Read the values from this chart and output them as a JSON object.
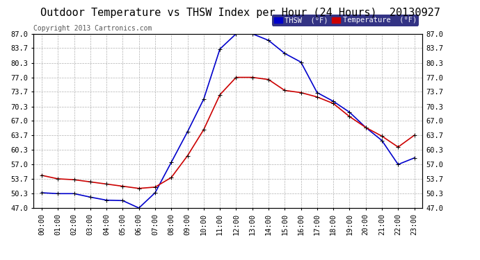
{
  "title": "Outdoor Temperature vs THSW Index per Hour (24 Hours)  20130927",
  "copyright": "Copyright 2013 Cartronics.com",
  "background_color": "#ffffff",
  "plot_bg_color": "#ffffff",
  "grid_color": "#b0b0b0",
  "hours": [
    "00:00",
    "01:00",
    "02:00",
    "03:00",
    "04:00",
    "05:00",
    "06:00",
    "07:00",
    "08:00",
    "09:00",
    "10:00",
    "11:00",
    "12:00",
    "13:00",
    "14:00",
    "15:00",
    "16:00",
    "17:00",
    "18:00",
    "19:00",
    "20:00",
    "21:00",
    "22:00",
    "23:00"
  ],
  "thsw": [
    50.5,
    50.3,
    50.3,
    49.5,
    48.8,
    48.7,
    47.0,
    50.5,
    57.5,
    64.5,
    72.0,
    83.5,
    87.0,
    87.0,
    85.5,
    82.5,
    80.5,
    73.5,
    71.5,
    69.0,
    65.5,
    62.5,
    57.0,
    58.5
  ],
  "temperature": [
    54.5,
    53.7,
    53.5,
    53.0,
    52.5,
    52.0,
    51.5,
    51.8,
    54.0,
    59.0,
    65.0,
    73.0,
    77.0,
    77.0,
    76.5,
    74.0,
    73.5,
    72.5,
    71.0,
    68.0,
    65.5,
    63.5,
    61.0,
    63.7
  ],
  "thsw_color": "#0000cc",
  "temperature_color": "#cc0000",
  "marker": "+",
  "markersize": 5,
  "linewidth": 1.2,
  "ylim": [
    47.0,
    87.0
  ],
  "yticks": [
    47.0,
    50.3,
    53.7,
    57.0,
    60.3,
    63.7,
    67.0,
    70.3,
    73.7,
    77.0,
    80.3,
    83.7,
    87.0
  ],
  "title_fontsize": 11,
  "tick_fontsize": 7.5,
  "copyright_fontsize": 7,
  "legend_thsw_label": "THSW  (°F)",
  "legend_temp_label": "Temperature  (°F)"
}
